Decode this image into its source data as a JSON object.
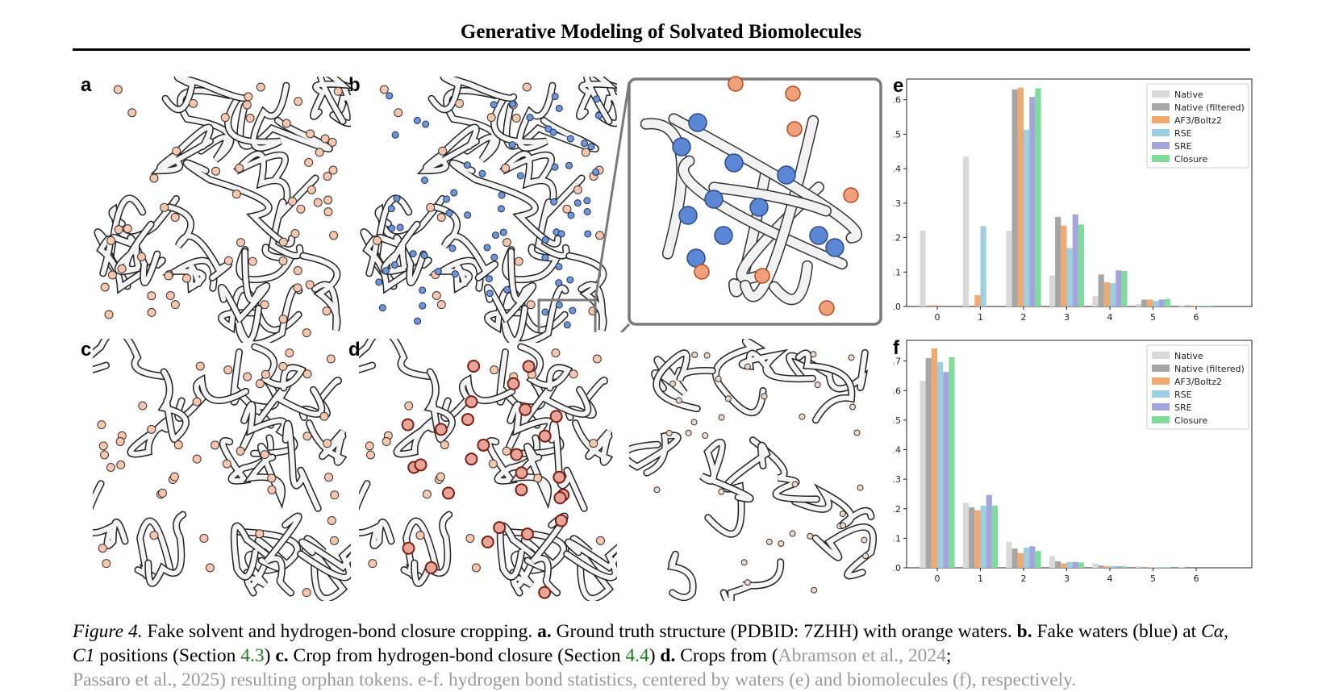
{
  "header": {
    "title": "Generative Modeling of Solvated Biomolecules"
  },
  "panels": {
    "a": "a",
    "b": "b",
    "c": "c",
    "d": "d",
    "e": "e",
    "f": "f"
  },
  "caption": {
    "figure_label": "Figure 4.",
    "intro": " Fake solvent and hydrogen-bond closure cropping. ",
    "a_label": "a.",
    "a_text": " Ground truth structure (PDBID: 7ZHH) with orange waters. ",
    "b_label": "b.",
    "b_text_1": " Fake waters (blue) at ",
    "b_math": "Cα, C1",
    "b_text_2": " positions (Section ",
    "b_sec": "4.3",
    "b_text_3": ") ",
    "c_label": "c.",
    "c_text_1": " Crop from hydrogen-bond closure (Section ",
    "c_sec": "4.4",
    "c_text_2": ") ",
    "d_label": "d.",
    "d_text_1": " Crops from (",
    "d_ref1": "Abramson et al., 2024",
    "d_text_2": ";",
    "line3": "Passaro et al., 2025) resulting orphan tokens. e-f. hydrogen bond statistics, centered by waters (e) and biomolecules (f), respectively."
  },
  "chart_data": [
    {
      "type": "bar",
      "title": "",
      "xlabel": "",
      "ylabel": "",
      "categories": [
        "0",
        "1",
        "2",
        "3",
        "4",
        "5",
        "6"
      ],
      "ylim": [
        0,
        0.66
      ],
      "yticks": [
        "0.0",
        "0.1",
        "0.2",
        "0.3",
        "0.4",
        "0.5",
        "0.6"
      ],
      "legend_position": "top-right",
      "series": [
        {
          "name": "Native",
          "color": "#d9d9d9",
          "values": [
            0.22,
            0.435,
            0.22,
            0.09,
            0.03,
            0.007,
            0.002
          ]
        },
        {
          "name": "Native (filtered)",
          "color": "#a6a6a6",
          "values": [
            0.0,
            0.0,
            0.63,
            0.26,
            0.093,
            0.02,
            0.003
          ]
        },
        {
          "name": "AF3/Boltz2",
          "color": "#f0aa70",
          "values": [
            0.004,
            0.033,
            0.635,
            0.235,
            0.07,
            0.02,
            0.003
          ]
        },
        {
          "name": "RSE",
          "color": "#9dcfe3",
          "values": [
            0.0,
            0.233,
            0.513,
            0.17,
            0.068,
            0.016,
            0.002
          ]
        },
        {
          "name": "SRE",
          "color": "#a5a5de",
          "values": [
            0.0,
            0.0,
            0.608,
            0.267,
            0.105,
            0.02,
            0.002
          ]
        },
        {
          "name": "Closure",
          "color": "#80dc9a",
          "values": [
            0.0,
            0.0,
            0.633,
            0.238,
            0.103,
            0.022,
            0.003
          ]
        }
      ]
    },
    {
      "type": "bar",
      "title": "",
      "xlabel": "",
      "ylabel": "",
      "categories": [
        "0",
        "1",
        "2",
        "3",
        "4",
        "5",
        "6"
      ],
      "ylim": [
        0,
        0.77
      ],
      "yticks": [
        "0.0",
        "0.1",
        "0.2",
        "0.3",
        "0.4",
        "0.5",
        "0.6",
        "0.7"
      ],
      "legend_position": "top-right",
      "series": [
        {
          "name": "Native",
          "color": "#d9d9d9",
          "values": [
            0.633,
            0.22,
            0.088,
            0.04,
            0.015,
            0.005,
            0.001
          ]
        },
        {
          "name": "Native (filtered)",
          "color": "#a6a6a6",
          "values": [
            0.71,
            0.205,
            0.065,
            0.022,
            0.008,
            0.003,
            0.0
          ]
        },
        {
          "name": "AF3/Boltz2",
          "color": "#f0aa70",
          "values": [
            0.743,
            0.195,
            0.05,
            0.015,
            0.005,
            0.002,
            0.0
          ]
        },
        {
          "name": "RSE",
          "color": "#9dcfe3",
          "values": [
            0.697,
            0.21,
            0.068,
            0.02,
            0.006,
            0.002,
            0.0
          ]
        },
        {
          "name": "SRE",
          "color": "#a5a5de",
          "values": [
            0.663,
            0.247,
            0.073,
            0.02,
            0.005,
            0.002,
            0.0
          ]
        },
        {
          "name": "Closure",
          "color": "#80dc9a",
          "values": [
            0.713,
            0.21,
            0.057,
            0.018,
            0.005,
            0.002,
            0.0
          ]
        }
      ]
    }
  ]
}
